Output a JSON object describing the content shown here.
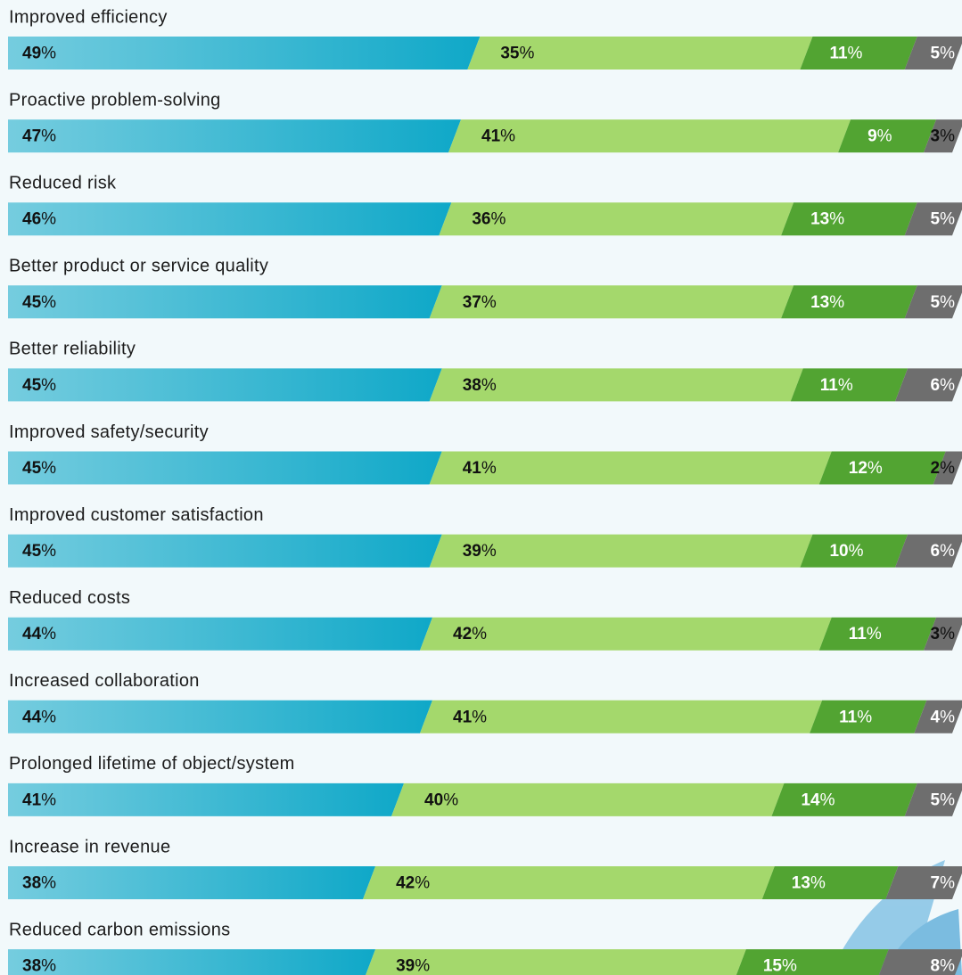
{
  "chart_data": {
    "type": "stacked_bar",
    "orientation": "horizontal",
    "categories": [
      "Improved efficiency",
      "Proactive problem-solving",
      "Reduced risk",
      "Better product or service quality",
      "Better reliability",
      "Improved safety/security",
      "Improved customer satisfaction",
      "Reduced costs",
      "Increased collaboration",
      "Prolonged lifetime of object/system",
      "Increase in revenue",
      "Reduced carbon emissions"
    ],
    "xlim": [
      0,
      100
    ],
    "series": [
      {
        "color": "#0fa8c8",
        "values": [
          49,
          47,
          46,
          45,
          45,
          45,
          45,
          44,
          44,
          41,
          38,
          38
        ],
        "value_labels": [
          "49%",
          "47%",
          "46%",
          "45%",
          "45%",
          "45%",
          "45%",
          "44%",
          "44%",
          "41%",
          "38%",
          "38%"
        ]
      },
      {
        "color": "#a4d86c",
        "values": [
          35,
          41,
          36,
          37,
          38,
          41,
          39,
          42,
          41,
          40,
          42,
          39
        ],
        "value_labels": [
          "35%",
          "41%",
          "36%",
          "37%",
          "38%",
          "41%",
          "39%",
          "42%",
          "41%",
          "40%",
          "42%",
          "39%"
        ]
      },
      {
        "color": "#52a432",
        "values": [
          11,
          9,
          13,
          13,
          11,
          12,
          10,
          11,
          11,
          14,
          13,
          15
        ],
        "value_labels": [
          "11%",
          "9%",
          "13%",
          "13%",
          "11%",
          "12%",
          "10%",
          "11%",
          "11%",
          "14%",
          "13%",
          "15%"
        ]
      },
      {
        "color": "#6e6e6e",
        "values": [
          5,
          3,
          5,
          5,
          6,
          2,
          6,
          3,
          4,
          5,
          7,
          8
        ],
        "value_labels": [
          "5%",
          "3%",
          "5%",
          "5%",
          "6%",
          "2%",
          "6%",
          "3%",
          "4%",
          "5%",
          "7%",
          "8%"
        ]
      }
    ]
  }
}
